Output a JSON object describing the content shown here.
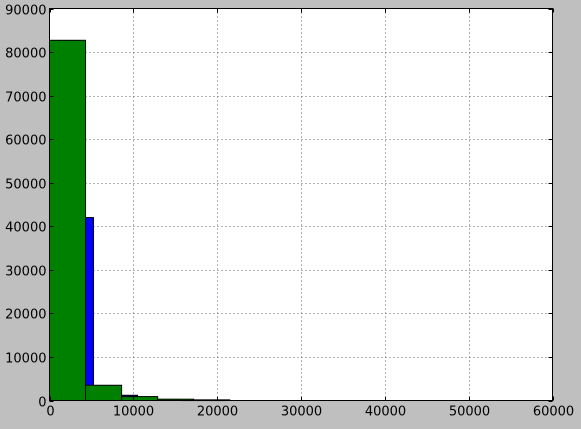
{
  "chart_data": {
    "type": "bar",
    "title": "",
    "xlabel": "",
    "ylabel": "",
    "xlim": [
      0,
      60000
    ],
    "ylim": [
      0,
      90000
    ],
    "grid": true,
    "xticks": [
      0,
      10000,
      20000,
      30000,
      40000,
      50000,
      60000
    ],
    "yticks": [
      0,
      10000,
      20000,
      30000,
      40000,
      50000,
      60000,
      70000,
      80000,
      90000
    ],
    "colors": {
      "figure_bg": "#bfbfbf",
      "axes_bg": "#ffffff",
      "grid": "#666666"
    },
    "series": [
      {
        "color": "#0000ff",
        "bins": [
          {
            "x0": 0,
            "x1": 5250,
            "value": 42000
          },
          {
            "x0": 5250,
            "x1": 10500,
            "value": 1200
          },
          {
            "x0": 10500,
            "x1": 15750,
            "value": 250
          },
          {
            "x0": 15750,
            "x1": 21000,
            "value": 100
          }
        ]
      },
      {
        "color": "#008000",
        "bins": [
          {
            "x0": 0,
            "x1": 4300,
            "value": 82700
          },
          {
            "x0": 4300,
            "x1": 8600,
            "value": 3500
          },
          {
            "x0": 8600,
            "x1": 12900,
            "value": 900
          },
          {
            "x0": 12900,
            "x1": 17200,
            "value": 300
          },
          {
            "x0": 17200,
            "x1": 21500,
            "value": 150
          }
        ]
      }
    ]
  }
}
